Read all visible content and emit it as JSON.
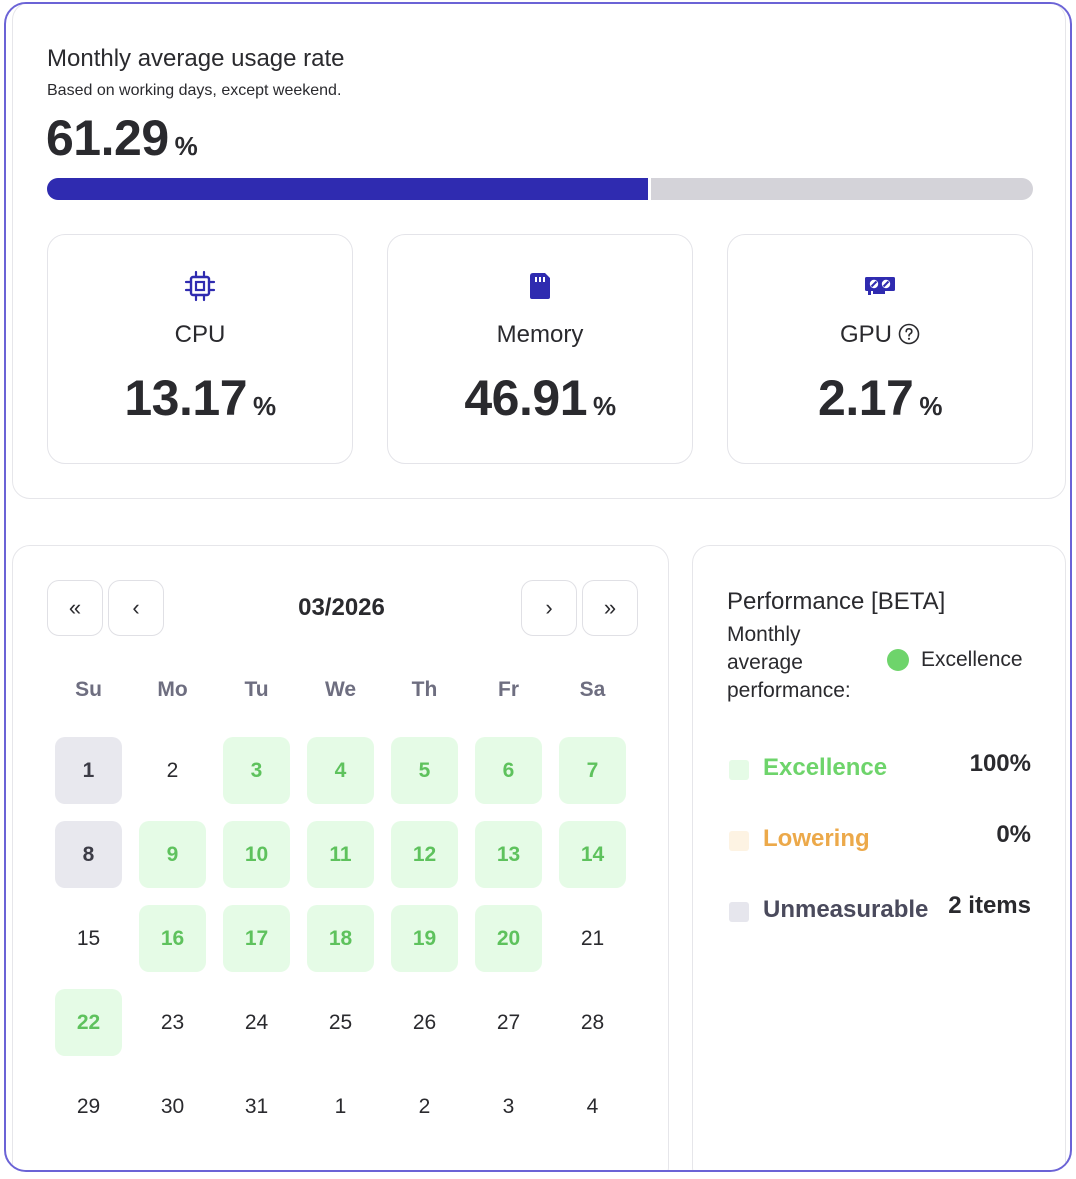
{
  "usage": {
    "title": "Monthly average usage rate",
    "subtitle": "Based on working days, except weekend.",
    "value": "61.29",
    "unit": "%",
    "progress_fraction": 0.6129,
    "colors": {
      "fill": "#2f2bb0",
      "track": "#d4d3d9"
    }
  },
  "metrics": [
    {
      "id": "cpu",
      "icon": "cpu-chip-icon",
      "label": "CPU",
      "value": "13.17",
      "unit": "%"
    },
    {
      "id": "memory",
      "icon": "memory-card-icon",
      "label": "Memory",
      "value": "46.91",
      "unit": "%"
    },
    {
      "id": "gpu",
      "icon": "gpu-card-icon",
      "label": "GPU",
      "value": "2.17",
      "unit": "%",
      "help_icon": "question-circle-icon"
    }
  ],
  "calendar": {
    "month": "03/2026",
    "nav": {
      "first": "«",
      "prev": "‹",
      "next": "›",
      "last": "»"
    },
    "weekdays": [
      "Su",
      "Mo",
      "Tu",
      "We",
      "Th",
      "Fr",
      "Sa"
    ],
    "weeks": [
      [
        {
          "d": "1",
          "s": "unmeasurable"
        },
        {
          "d": "2",
          "s": ""
        },
        {
          "d": "3",
          "s": "excellent"
        },
        {
          "d": "4",
          "s": "excellent"
        },
        {
          "d": "5",
          "s": "excellent"
        },
        {
          "d": "6",
          "s": "excellent"
        },
        {
          "d": "7",
          "s": "excellent"
        }
      ],
      [
        {
          "d": "8",
          "s": "unmeasurable"
        },
        {
          "d": "9",
          "s": "excellent"
        },
        {
          "d": "10",
          "s": "excellent"
        },
        {
          "d": "11",
          "s": "excellent"
        },
        {
          "d": "12",
          "s": "excellent"
        },
        {
          "d": "13",
          "s": "excellent"
        },
        {
          "d": "14",
          "s": "excellent"
        }
      ],
      [
        {
          "d": "15",
          "s": ""
        },
        {
          "d": "16",
          "s": "excellent"
        },
        {
          "d": "17",
          "s": "excellent"
        },
        {
          "d": "18",
          "s": "excellent"
        },
        {
          "d": "19",
          "s": "excellent"
        },
        {
          "d": "20",
          "s": "excellent"
        },
        {
          "d": "21",
          "s": ""
        }
      ],
      [
        {
          "d": "22",
          "s": "excellent"
        },
        {
          "d": "23",
          "s": ""
        },
        {
          "d": "24",
          "s": ""
        },
        {
          "d": "25",
          "s": ""
        },
        {
          "d": "26",
          "s": ""
        },
        {
          "d": "27",
          "s": ""
        },
        {
          "d": "28",
          "s": ""
        }
      ],
      [
        {
          "d": "29",
          "s": ""
        },
        {
          "d": "30",
          "s": ""
        },
        {
          "d": "31",
          "s": ""
        },
        {
          "d": "1",
          "s": ""
        },
        {
          "d": "2",
          "s": ""
        },
        {
          "d": "3",
          "s": ""
        },
        {
          "d": "4",
          "s": ""
        }
      ]
    ]
  },
  "performance": {
    "title": "Performance [BETA]",
    "subtitle": "Monthly average performance:",
    "status": "Excellence",
    "status_color": "#6ed46b",
    "legend": [
      {
        "label": "Excellence",
        "value": "100%",
        "label_color": "#6ed46b",
        "swatch": "#e5fbe6"
      },
      {
        "label": "Lowering",
        "value": "0%",
        "label_color": "#eca94a",
        "swatch": "#fdf3e3"
      },
      {
        "label": "Unmeasurable",
        "value": "2 items",
        "label_color": "#4a4a5c",
        "swatch": "#e6e6ed"
      }
    ]
  }
}
